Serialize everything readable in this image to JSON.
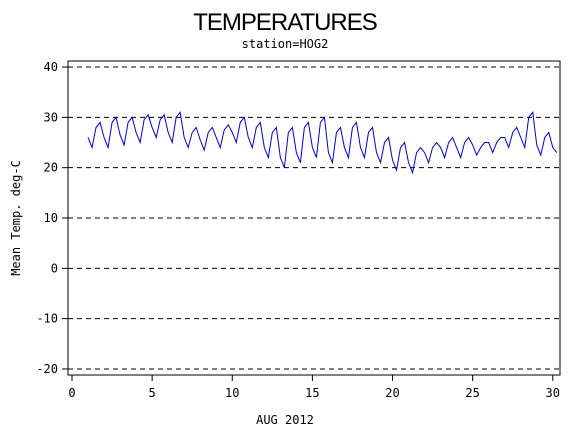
{
  "chart_data": {
    "type": "line",
    "title": "TEMPERATURES",
    "subtitle": "station=HOG2",
    "y_label": "Mean Temp. deg-C",
    "x_label": "AUG 2012",
    "xlim": [
      -0.25,
      30.45
    ],
    "ylim": [
      -21.2,
      41.2
    ],
    "xticks": [
      0,
      5,
      10,
      15,
      20,
      25,
      30
    ],
    "yticks": [
      -20,
      -10,
      0,
      10,
      20,
      30,
      40
    ],
    "grid": true,
    "x": [
      1,
      1.25,
      1.5,
      1.75,
      2,
      2.25,
      2.5,
      2.75,
      3,
      3.25,
      3.5,
      3.75,
      4,
      4.25,
      4.5,
      4.75,
      5,
      5.25,
      5.5,
      5.75,
      6,
      6.25,
      6.5,
      6.75,
      7,
      7.25,
      7.5,
      7.75,
      8,
      8.25,
      8.5,
      8.75,
      9,
      9.25,
      9.5,
      9.75,
      10,
      10.25,
      10.5,
      10.75,
      11,
      11.25,
      11.5,
      11.75,
      12,
      12.25,
      12.5,
      12.75,
      13,
      13.25,
      13.5,
      13.75,
      14,
      14.25,
      14.5,
      14.75,
      15,
      15.25,
      15.5,
      15.75,
      16,
      16.25,
      16.5,
      16.75,
      17,
      17.25,
      17.5,
      17.75,
      18,
      18.25,
      18.5,
      18.75,
      19,
      19.25,
      19.5,
      19.75,
      20,
      20.25,
      20.5,
      20.75,
      21,
      21.25,
      21.5,
      21.75,
      22,
      22.25,
      22.5,
      22.75,
      23,
      23.25,
      23.5,
      23.75,
      24,
      24.25,
      24.5,
      24.75,
      25,
      25.25,
      25.5,
      25.75,
      26,
      26.25,
      26.5,
      26.75,
      27,
      27.25,
      27.5,
      27.75,
      28,
      28.25,
      28.5,
      28.75,
      29,
      29.25,
      29.5,
      29.75,
      30,
      30.25
    ],
    "series": [
      {
        "color": "#0000cc",
        "values": [
          26,
          24,
          28,
          29,
          26,
          24,
          29,
          30,
          26.5,
          24.5,
          29,
          30,
          27,
          25,
          29.5,
          30.5,
          28,
          26,
          29.5,
          30.5,
          27,
          25,
          30,
          31,
          26,
          24,
          27,
          28,
          25.5,
          23.5,
          27,
          28,
          26,
          24,
          27.5,
          28.5,
          27,
          25,
          29,
          30,
          26,
          24,
          28,
          29,
          24,
          22,
          27,
          28,
          22,
          20,
          27,
          28,
          23,
          21,
          28,
          29,
          24,
          22,
          29,
          30,
          23,
          21,
          27,
          28,
          24,
          22,
          28,
          29,
          24,
          22,
          27,
          28,
          23,
          21,
          25,
          26,
          21.5,
          19.5,
          24,
          25,
          21,
          19,
          23,
          24,
          23,
          21,
          24,
          25,
          24,
          22,
          25,
          26,
          24,
          22,
          25,
          26,
          24.5,
          22.5,
          24,
          25,
          25,
          23,
          25,
          26,
          26,
          24,
          27,
          28,
          26,
          24,
          30,
          31,
          24.5,
          22.5,
          26,
          27,
          24,
          23
        ]
      }
    ]
  }
}
